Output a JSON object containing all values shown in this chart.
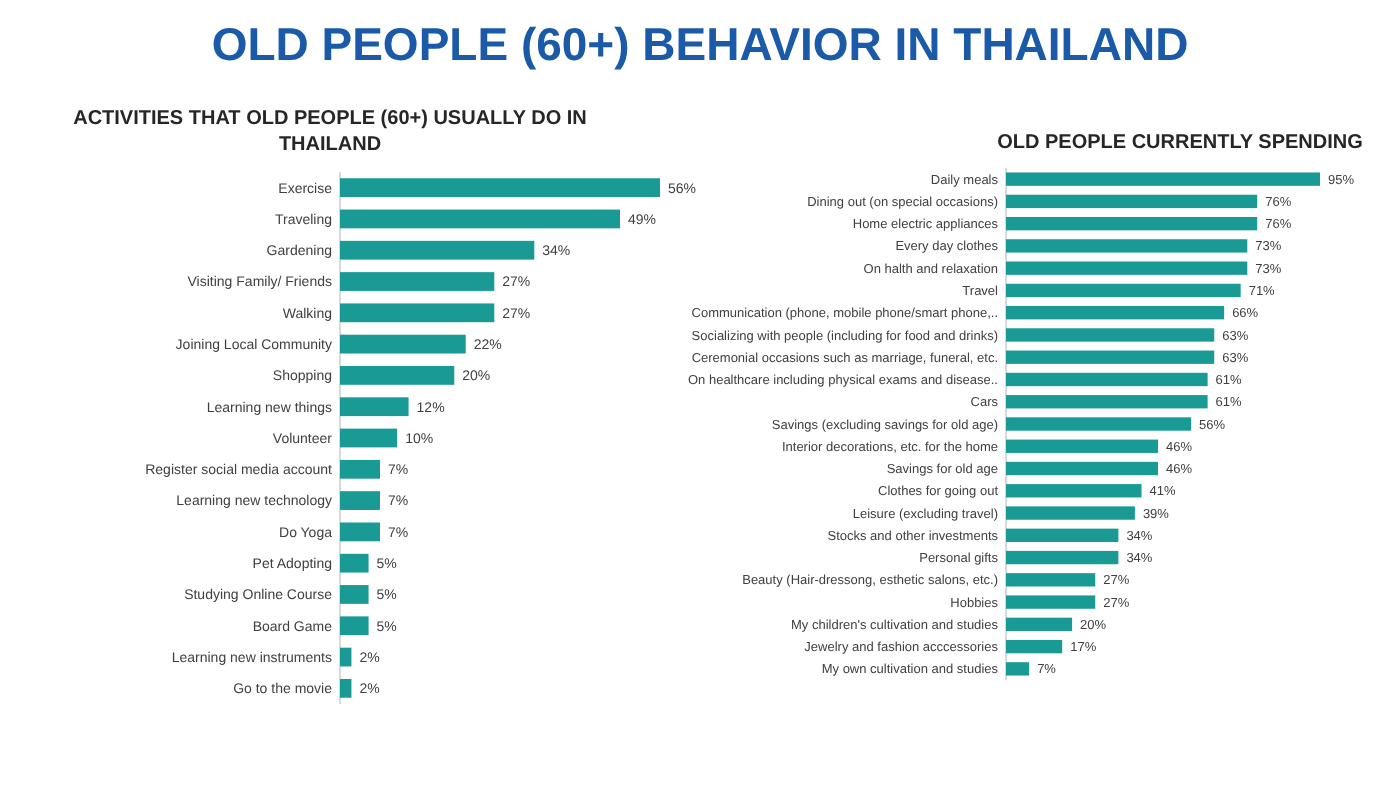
{
  "chart_data": [
    {
      "type": "bar",
      "orientation": "horizontal",
      "title": "OLD PEOPLE (60+) BEHAVIOR IN THAILAND",
      "subtitle": "ACTIVITIES THAT OLD PEOPLE (60+) USUALLY DO IN THAILAND",
      "color": "#1a9a95",
      "categories": [
        "Exercise",
        "Traveling",
        "Gardening",
        "Visiting Family/ Friends",
        "Walking",
        "Joining Local Community",
        "Shopping",
        "Learning new things",
        "Volunteer",
        "Register social media account",
        "Learning new technology",
        "Do Yoga",
        "Pet Adopting",
        "Studying Online Course",
        "Board Game",
        "Learning new instruments",
        "Go to the movie"
      ],
      "values": [
        56,
        49,
        34,
        27,
        27,
        22,
        20,
        12,
        10,
        7,
        7,
        7,
        5,
        5,
        5,
        2,
        2
      ],
      "value_labels": [
        "56%",
        "49%",
        "34%",
        "27%",
        "27%",
        "22%",
        "20%",
        "12%",
        "10%",
        "7%",
        "7%",
        "7%",
        "5%",
        "5%",
        "5%",
        "2%",
        "2%"
      ]
    },
    {
      "type": "bar",
      "orientation": "horizontal",
      "title": "OLD PEOPLE CURRENTLY SPENDING",
      "color": "#1a9a95",
      "categories": [
        "Daily meals",
        "Dining out (on special occasions)",
        "Home electric appliances",
        "Every day clothes",
        "On halth and relaxation",
        "Travel",
        "Communication (phone, mobile phone/smart phone,..",
        "Socializing with people (including for food and drinks)",
        "Ceremonial occasions such as marriage, funeral, etc.",
        "On healthcare including physical exams and disease..",
        "Cars",
        "Savings (excluding savings for old age)",
        "Interior decorations, etc. for the home",
        "Savings for old age",
        "Clothes for going out",
        "Leisure (excluding travel)",
        "Stocks and other investments",
        "Personal gifts",
        "Beauty (Hair-dressong, esthetic salons, etc.)",
        "Hobbies",
        "My children's cultivation and studies",
        "Jewelry and fashion acccessories",
        "My own cultivation and studies"
      ],
      "values": [
        95,
        76,
        76,
        73,
        73,
        71,
        66,
        63,
        63,
        61,
        61,
        56,
        46,
        46,
        41,
        39,
        34,
        34,
        27,
        27,
        20,
        17,
        7
      ],
      "value_labels": [
        "95%",
        "76%",
        "76%",
        "73%",
        "73%",
        "71%",
        "66%",
        "63%",
        "63%",
        "61%",
        "61%",
        "56%",
        "46%",
        "46%",
        "41%",
        "39%",
        "34%",
        "34%",
        "27%",
        "27%",
        "20%",
        "17%",
        "7%"
      ]
    }
  ]
}
